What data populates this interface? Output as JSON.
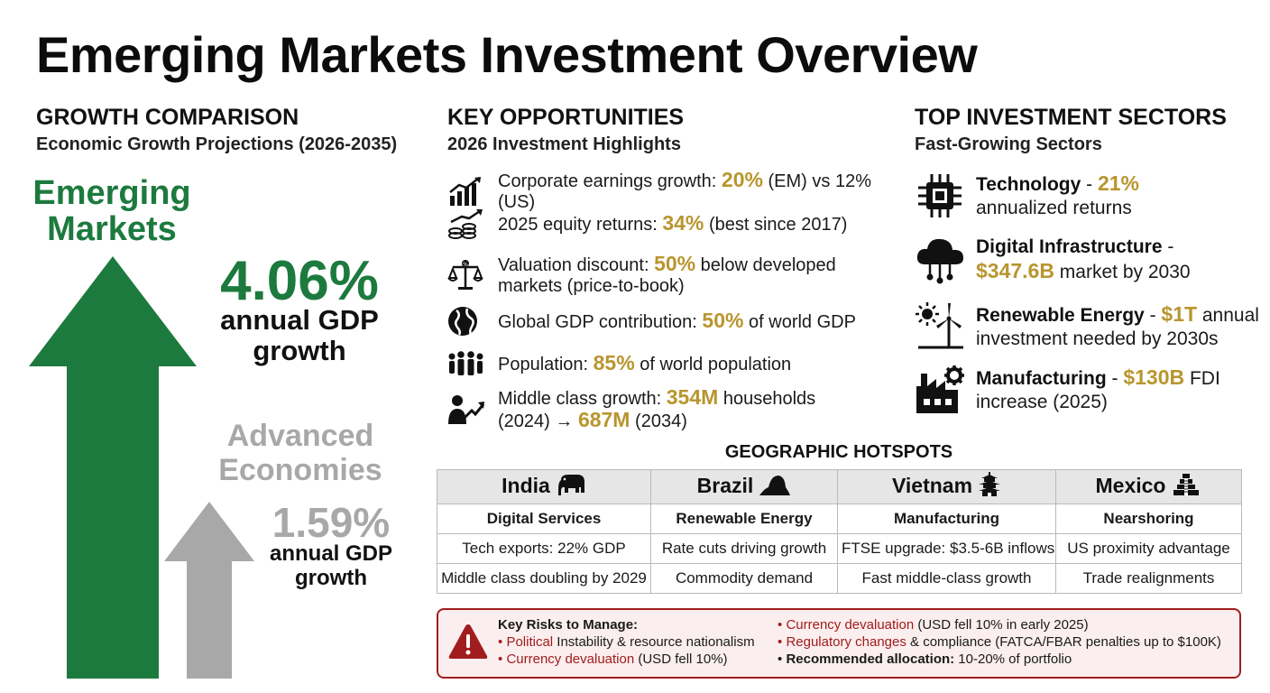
{
  "title": "Emerging Markets Investment Overview",
  "colors": {
    "green": "#1d7a3e",
    "gray": "#a8a8a8",
    "gold": "#b8962e",
    "red": "#a11d1d"
  },
  "growth": {
    "heading": "GROWTH COMPARISON",
    "subheading": "Economic Growth Projections (2026-2035)",
    "emerging": {
      "label": "Emerging Markets",
      "value": "4.06%",
      "desc": "annual GDP growth",
      "gdp_growth_pct": 4.06
    },
    "advanced": {
      "label": "Advanced Economies",
      "value": "1.59%",
      "desc": "annual GDP growth",
      "gdp_growth_pct": 1.59
    }
  },
  "opportunities": {
    "heading": "KEY OPPORTUNITIES",
    "subheading": "2026 Investment Highlights",
    "items": [
      {
        "icon": "chart-growth-icon",
        "pre": "Corporate earnings growth: ",
        "hl": "20%",
        "post": " (EM) vs 12% (US)",
        "hl2": "",
        "post2": ""
      },
      {
        "icon": "coins-growth-icon",
        "pre": "2025 equity returns: ",
        "hl": "34%",
        "post": " (best since 2017)",
        "hl2": "",
        "post2": ""
      },
      {
        "icon": "balance-scale-icon",
        "pre": "Valuation discount: ",
        "hl": "50%",
        "post": " below developed markets (price-to-book)",
        "hl2": "",
        "post2": ""
      },
      {
        "icon": "globe-icon",
        "pre": "Global GDP contribution: ",
        "hl": "50%",
        "post": " of world GDP",
        "hl2": "",
        "post2": ""
      },
      {
        "icon": "people-group-icon",
        "pre": "Population: ",
        "hl": "85%",
        "post": " of world population",
        "hl2": "",
        "post2": ""
      },
      {
        "icon": "person-growth-icon",
        "pre": "Middle class growth: ",
        "hl": "354M",
        "post": " households (2024) → ",
        "hl2": "687M",
        "post2": " (2034)"
      }
    ]
  },
  "sectors": {
    "heading": "TOP INVESTMENT SECTORS",
    "subheading": "Fast-Growing Sectors",
    "items": [
      {
        "icon": "chip-icon",
        "name": "Technology",
        "sep": " - ",
        "hl": "21%",
        "post": " annualized returns"
      },
      {
        "icon": "cloud-network-icon",
        "name": "Digital Infrastructure",
        "sep": " - ",
        "hl": "$347.6B",
        "post": " market by 2030"
      },
      {
        "icon": "sun-wind-icon",
        "name": "Renewable Energy",
        "sep": " - ",
        "hl": "$1T",
        "post": " annual investment needed by 2030s"
      },
      {
        "icon": "factory-gear-icon",
        "name": "Manufacturing",
        "sep": " - ",
        "hl": "$130B",
        "post": " FDI increase (2025)"
      }
    ]
  },
  "hotspots": {
    "heading": "GEOGRAPHIC HOTSPOTS",
    "columns": [
      {
        "country": "India",
        "icon": "elephant-icon",
        "focus": "Digital Services",
        "fact1": "Tech exports: 22% GDP",
        "fact2": "Middle class doubling by 2029"
      },
      {
        "country": "Brazil",
        "icon": "sugarloaf-mountain-icon",
        "focus": "Renewable Energy",
        "fact1": "Rate cuts driving growth",
        "fact2": "Commodity demand"
      },
      {
        "country": "Vietnam",
        "icon": "pagoda-icon",
        "focus": "Manufacturing",
        "fact1": "FTSE upgrade: $3.5-6B inflows",
        "fact2": "Fast middle-class growth"
      },
      {
        "country": "Mexico",
        "icon": "pyramid-icon",
        "focus": "Nearshoring",
        "fact1": "US proximity advantage",
        "fact2": "Trade realignments"
      }
    ]
  },
  "risks": {
    "heading": "Key Risks to Manage:",
    "bullet": "•",
    "col1": [
      {
        "hl": "Political",
        "post": " Instability & resource nationalism"
      },
      {
        "hl": "Currency devaluation",
        "post": " (USD fell 10%)"
      }
    ],
    "col2": [
      {
        "hl": "Currency devaluation",
        "post": " (USD fell 10% in early 2025)"
      },
      {
        "hl": "Regulatory changes",
        "post": " & compliance (FATCA/FBAR penalties up to $100K)"
      }
    ],
    "allocation_label": "Recommended allocation:",
    "allocation_value": " 10-20% of portfolio"
  }
}
